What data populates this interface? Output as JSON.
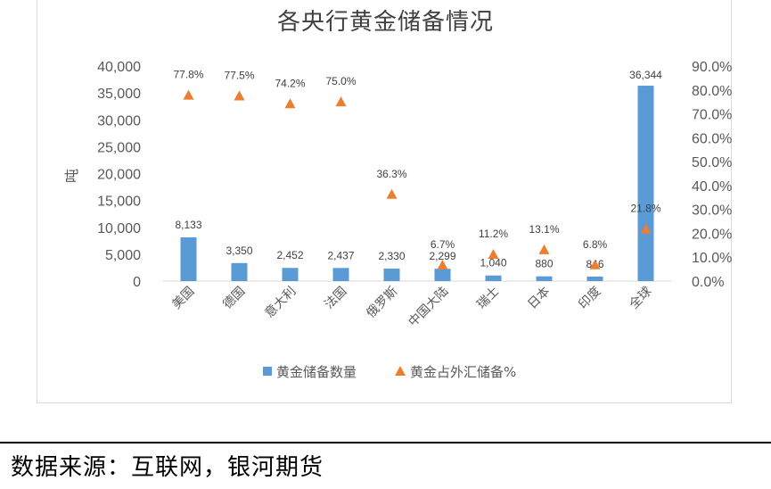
{
  "title": "各央行黄金储备情况",
  "source": "数据来源：互联网，银河期货",
  "colors": {
    "bar": "#5b9bd5",
    "marker": "#ed7d31",
    "axis_text": "#595959",
    "grid": "#d9d9d9"
  },
  "chart_data": {
    "type": "bar",
    "title": "各央行黄金储备情况",
    "categories": [
      "美国",
      "德国",
      "意大利",
      "法国",
      "俄罗斯",
      "中国大陆",
      "瑞士",
      "日本",
      "印度",
      "全球"
    ],
    "ylabel": "吨",
    "ylim": [
      0,
      40000
    ],
    "yticks": [
      "0",
      "5,000",
      "10,000",
      "15,000",
      "20,000",
      "25,000",
      "30,000",
      "35,000",
      "40,000"
    ],
    "y2lim": [
      0,
      90
    ],
    "y2ticks": [
      "0.0%",
      "10.0%",
      "20.0%",
      "30.0%",
      "40.0%",
      "50.0%",
      "60.0%",
      "70.0%",
      "80.0%",
      "90.0%"
    ],
    "legend_position": "bottom",
    "grid": false,
    "series": [
      {
        "name": "黄金储备数量",
        "type": "bar",
        "axis": "left",
        "values": [
          8133,
          3350,
          2452,
          2437,
          2330,
          2299,
          1040,
          880,
          846,
          36344
        ],
        "labels": [
          "8,133",
          "3,350",
          "2,452",
          "2,437",
          "2,330",
          "2,299",
          "1,040",
          "880",
          "846",
          "36,344"
        ]
      },
      {
        "name": "黄金占外汇储备%",
        "type": "scatter",
        "marker": "triangle",
        "axis": "right",
        "values": [
          77.8,
          77.5,
          74.2,
          75.0,
          36.3,
          6.7,
          11.2,
          13.1,
          6.8,
          21.8
        ],
        "labels": [
          "77.8%",
          "77.5%",
          "74.2%",
          "75.0%",
          "36.3%",
          "6.7%",
          "11.2%",
          "13.1%",
          "6.8%",
          "21.8%"
        ]
      }
    ]
  }
}
